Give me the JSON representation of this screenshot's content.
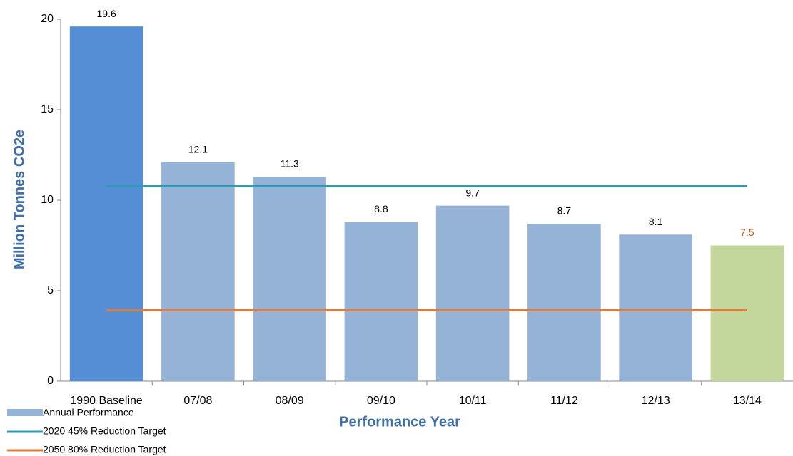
{
  "chart_data": {
    "type": "bar",
    "x_label": "Performance Year",
    "y_label": "Million Tonnes CO2e",
    "categories": [
      "1990 Baseline",
      "07/08",
      "08/09",
      "09/10",
      "10/11",
      "11/12",
      "12/13",
      "13/14"
    ],
    "series": [
      {
        "name": "Annual Performance",
        "type": "bar",
        "color": "#95b3d7",
        "values": [
          19.6,
          12.1,
          11.3,
          8.8,
          9.7,
          8.7,
          8.1,
          7.5
        ],
        "colors": [
          "#558ed5",
          "#95b3d7",
          "#95b3d7",
          "#95b3d7",
          "#95b3d7",
          "#95b3d7",
          "#95b3d7",
          "#c3d69b"
        ],
        "label_colors": [
          "#000000",
          "#000000",
          "#000000",
          "#000000",
          "#000000",
          "#000000",
          "#000000",
          "#c55a11"
        ]
      },
      {
        "name": "2020 45% Reduction Target",
        "type": "line",
        "color": "#2e9ab5",
        "values": [
          10.78,
          10.78,
          10.78,
          10.78,
          10.78,
          10.78,
          10.78,
          10.78
        ]
      },
      {
        "name": "2050 80% Reduction Target",
        "type": "line",
        "color": "#e07b39",
        "values": [
          3.92,
          3.92,
          3.92,
          3.92,
          3.92,
          3.92,
          3.92,
          3.92
        ]
      }
    ],
    "ylim": [
      0,
      20
    ],
    "yticks": [
      0,
      5,
      10,
      15,
      20
    ],
    "grid": false,
    "legend": "bottom-left"
  }
}
